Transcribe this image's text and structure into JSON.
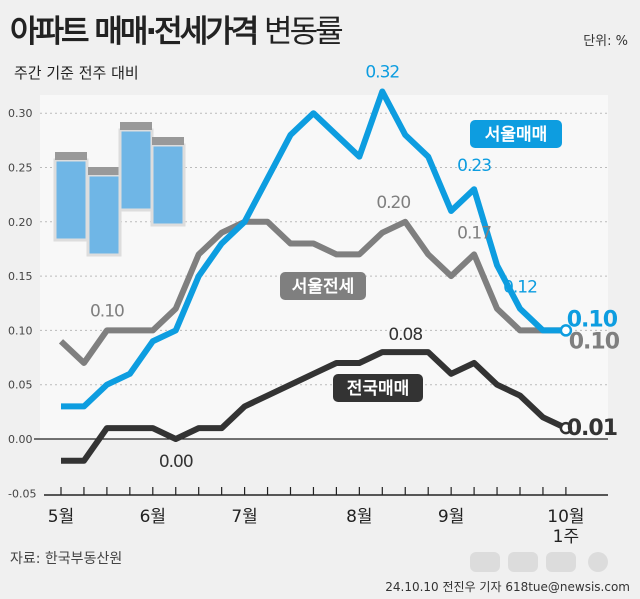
{
  "header": {
    "title_bold": "아파트 매매·전세가격",
    "title_light": "변동률",
    "unit": "단위: %",
    "subtitle": "주간 기준 전주 대비"
  },
  "footer": {
    "source": "자료: 한국부동산원",
    "credit": "24.10.10 전진우 기자 618tue@newsis.com",
    "watermark": "뉴시스"
  },
  "chart_data": {
    "type": "line",
    "ylim": [
      -0.05,
      0.3
    ],
    "yticks": [
      "-0.05",
      "0.00",
      "0.05",
      "0.10",
      "0.15",
      "0.20",
      "0.25",
      "0.30"
    ],
    "month_labels": [
      {
        "label": "5월",
        "index": 0
      },
      {
        "label": "6월",
        "index": 4
      },
      {
        "label": "7월",
        "index": 8
      },
      {
        "label": "8월",
        "index": 13
      },
      {
        "label": "9월",
        "index": 17
      },
      {
        "label": "10월",
        "sub": "1주",
        "index": 22
      }
    ],
    "grid": true,
    "series": [
      {
        "name": "서울매매",
        "color": "#0d9de0",
        "values": [
          0.03,
          0.03,
          0.05,
          0.06,
          0.09,
          0.1,
          0.15,
          0.18,
          0.2,
          0.24,
          0.28,
          0.3,
          0.28,
          0.26,
          0.32,
          0.28,
          0.26,
          0.21,
          0.23,
          0.16,
          0.12,
          0.1,
          0.1
        ],
        "labels": [
          {
            "index": 14,
            "text": "0.32"
          },
          {
            "index": 18,
            "text": "0.23"
          },
          {
            "index": 20,
            "text": "0.12"
          },
          {
            "index": 22,
            "text": "0.10"
          }
        ]
      },
      {
        "name": "서울전세",
        "color": "#7f7f7f",
        "values": [
          0.09,
          0.07,
          0.1,
          0.1,
          0.1,
          0.12,
          0.17,
          0.19,
          0.2,
          0.2,
          0.18,
          0.18,
          0.17,
          0.17,
          0.19,
          0.2,
          0.17,
          0.15,
          0.17,
          0.12,
          0.1,
          0.1,
          0.1
        ],
        "labels": [
          {
            "index": 2,
            "text": "0.10"
          },
          {
            "index": 15,
            "text": "0.20"
          },
          {
            "index": 18,
            "text": "0.17"
          },
          {
            "index": 22,
            "text": "0.10"
          }
        ]
      },
      {
        "name": "전국매매",
        "color": "#333333",
        "values": [
          -0.02,
          -0.02,
          0.01,
          0.01,
          0.01,
          0.0,
          0.01,
          0.01,
          0.03,
          0.04,
          0.05,
          0.06,
          0.07,
          0.07,
          0.08,
          0.08,
          0.08,
          0.06,
          0.07,
          0.05,
          0.04,
          0.02,
          0.01
        ],
        "labels": [
          {
            "index": 5,
            "text": "0.00"
          },
          {
            "index": 15,
            "text": "0.08"
          },
          {
            "index": 22,
            "text": "0.01"
          }
        ]
      }
    ]
  }
}
